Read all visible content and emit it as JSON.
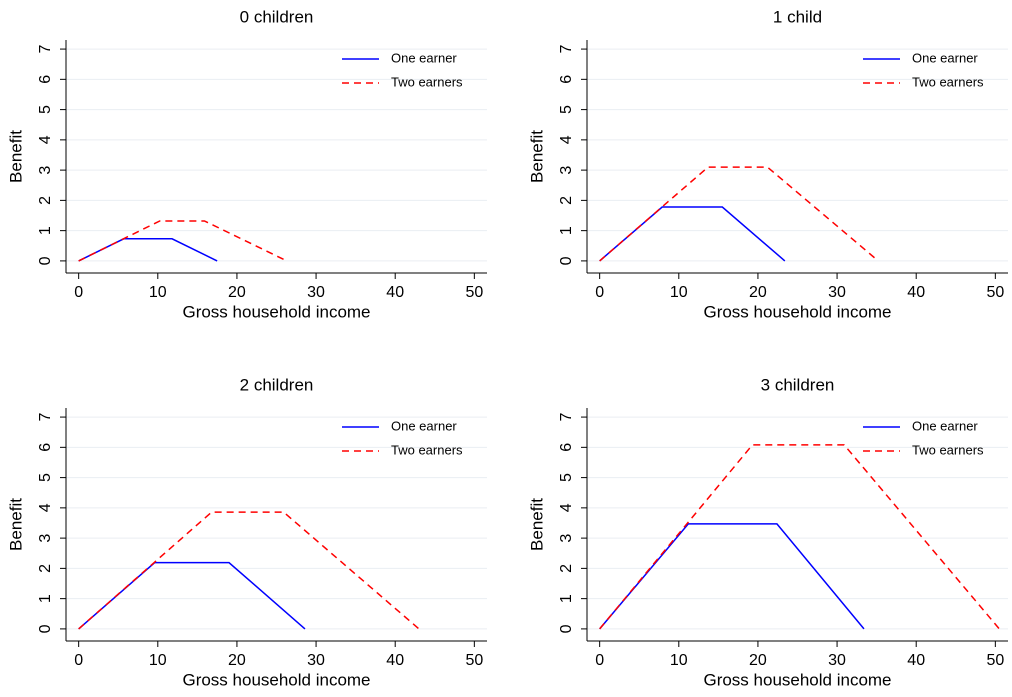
{
  "chart_data": [
    {
      "type": "line",
      "title": "0 children",
      "xlabel": "Gross household income",
      "ylabel": "Benefit",
      "xlim": [
        -1.6,
        51.6
      ],
      "ylim": [
        -0.4,
        7.3
      ],
      "xticks": [
        0,
        10,
        20,
        30,
        40,
        50
      ],
      "yticks": [
        0,
        1,
        2,
        3,
        4,
        5,
        6,
        7
      ],
      "grid": true,
      "legend": "top-right",
      "series": [
        {
          "name": "One earner",
          "color": "#0000ff",
          "line_style": "solid",
          "x": [
            0,
            5.7,
            11.8,
            17.5
          ],
          "values": [
            0,
            0.73,
            0.73,
            0
          ]
        },
        {
          "name": "Two earners",
          "color": "#ff0000",
          "line_style": "dashed",
          "x": [
            0,
            10.25,
            15.9,
            26.3
          ],
          "values": [
            0,
            1.32,
            1.32,
            0
          ]
        }
      ]
    },
    {
      "type": "line",
      "title": "1 child",
      "xlabel": "Gross household income",
      "ylabel": "Benefit",
      "xlim": [
        -1.6,
        51.6
      ],
      "ylim": [
        -0.4,
        7.3
      ],
      "xticks": [
        0,
        10,
        20,
        30,
        40,
        50
      ],
      "yticks": [
        0,
        1,
        2,
        3,
        4,
        5,
        6,
        7
      ],
      "grid": true,
      "legend": "top-right",
      "series": [
        {
          "name": "One earner",
          "color": "#0000ff",
          "line_style": "solid",
          "x": [
            0,
            7.9,
            15.5,
            23.4
          ],
          "values": [
            0,
            1.78,
            1.78,
            0
          ]
        },
        {
          "name": "Two earners",
          "color": "#ff0000",
          "line_style": "dashed",
          "x": [
            0,
            13.7,
            21.2,
            35.2
          ],
          "values": [
            0,
            3.1,
            3.1,
            0
          ]
        }
      ]
    },
    {
      "type": "line",
      "title": "2 children",
      "xlabel": "Gross household income",
      "ylabel": "Benefit",
      "xlim": [
        -1.6,
        51.6
      ],
      "ylim": [
        -0.4,
        7.3
      ],
      "xticks": [
        0,
        10,
        20,
        30,
        40,
        50
      ],
      "yticks": [
        0,
        1,
        2,
        3,
        4,
        5,
        6,
        7
      ],
      "grid": true,
      "legend": "top-right",
      "series": [
        {
          "name": "One earner",
          "color": "#0000ff",
          "line_style": "solid",
          "x": [
            0,
            9.6,
            19,
            28.6
          ],
          "values": [
            0,
            2.19,
            2.19,
            0
          ]
        },
        {
          "name": "Two earners",
          "color": "#ff0000",
          "line_style": "dashed",
          "x": [
            0,
            16.8,
            25.9,
            43
          ],
          "values": [
            0,
            3.86,
            3.86,
            0
          ]
        }
      ]
    },
    {
      "type": "line",
      "title": "3 children",
      "xlabel": "Gross household income",
      "ylabel": "Benefit",
      "xlim": [
        -1.6,
        51.6
      ],
      "ylim": [
        -0.4,
        7.3
      ],
      "xticks": [
        0,
        10,
        20,
        30,
        40,
        50
      ],
      "yticks": [
        0,
        1,
        2,
        3,
        4,
        5,
        6,
        7
      ],
      "grid": true,
      "legend": "top-right",
      "series": [
        {
          "name": "One earner",
          "color": "#0000ff",
          "line_style": "solid",
          "x": [
            0,
            11.2,
            22.4,
            33.4
          ],
          "values": [
            0,
            3.47,
            3.47,
            0
          ]
        },
        {
          "name": "Two earners",
          "color": "#ff0000",
          "line_style": "dashed",
          "x": [
            0,
            19.3,
            30.9,
            50.5
          ],
          "values": [
            0,
            6.08,
            6.08,
            0
          ]
        }
      ]
    }
  ]
}
